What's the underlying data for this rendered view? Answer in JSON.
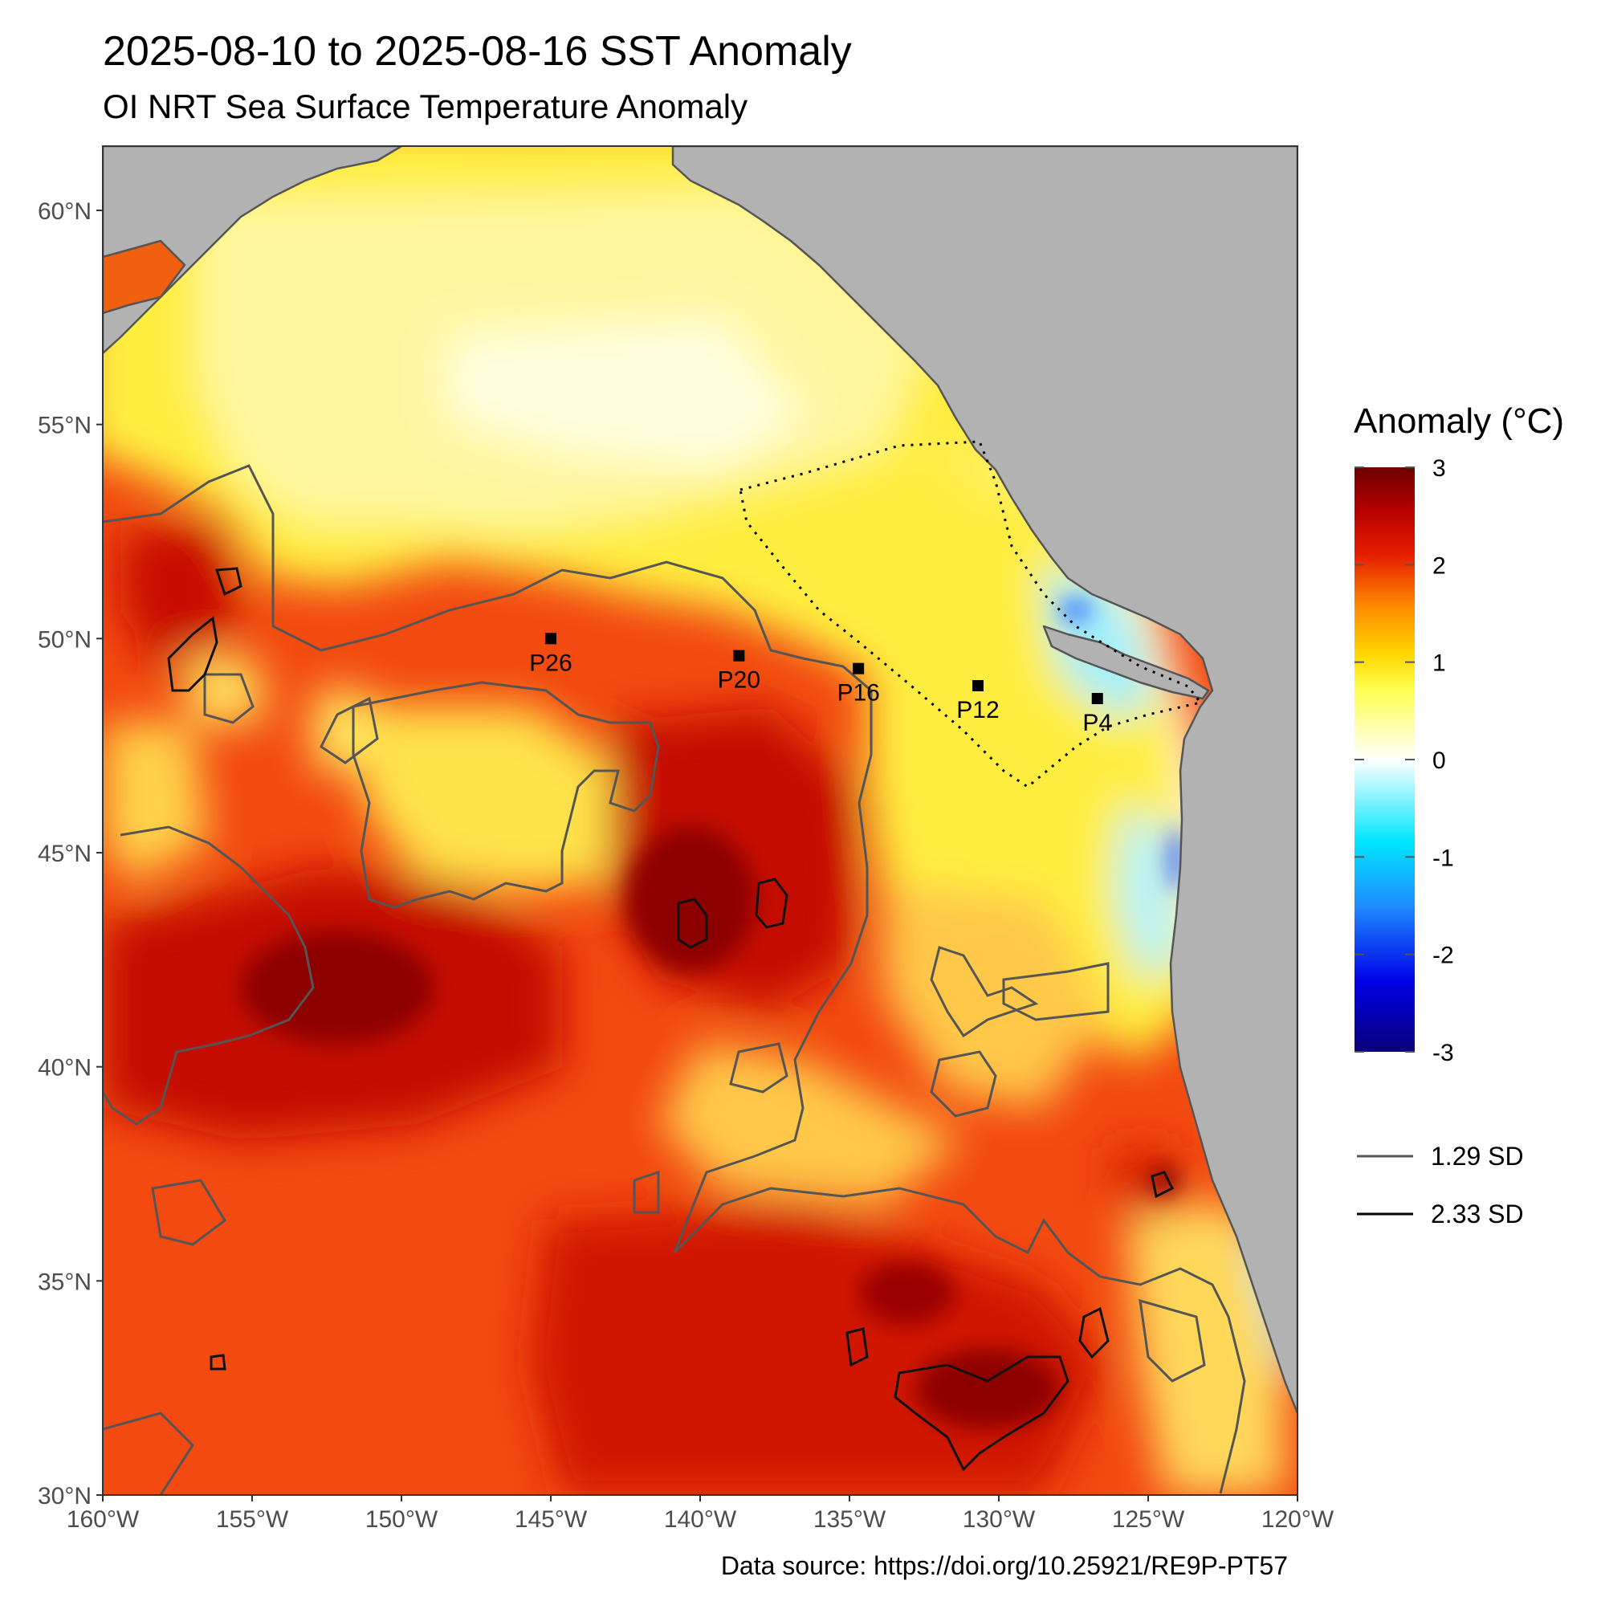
{
  "title": "2025-08-10 to 2025-08-16 SST Anomaly",
  "subtitle": "OI NRT Sea Surface Temperature Anomaly",
  "source": "Data source: https://doi.org/10.25921/RE9P-PT57",
  "axes": {
    "lat_ticks": [
      {
        "value": 60,
        "label": "60°N"
      },
      {
        "value": 55,
        "label": "55°N"
      },
      {
        "value": 50,
        "label": "50°N"
      },
      {
        "value": 45,
        "label": "45°N"
      },
      {
        "value": 40,
        "label": "40°N"
      },
      {
        "value": 35,
        "label": "35°N"
      },
      {
        "value": 30,
        "label": "30°N"
      }
    ],
    "lon_ticks": [
      {
        "value": -160,
        "label": "160°W"
      },
      {
        "value": -155,
        "label": "155°W"
      },
      {
        "value": -150,
        "label": "150°W"
      },
      {
        "value": -145,
        "label": "145°W"
      },
      {
        "value": -140,
        "label": "140°W"
      },
      {
        "value": -135,
        "label": "135°W"
      },
      {
        "value": -130,
        "label": "130°W"
      },
      {
        "value": -125,
        "label": "125°W"
      },
      {
        "value": -120,
        "label": "120°W"
      }
    ],
    "lon_range": [
      -160,
      -120
    ],
    "lat_range": [
      30,
      61.5
    ]
  },
  "stations": [
    {
      "name": "P26",
      "lon": -145.0,
      "lat": 50.0
    },
    {
      "name": "P20",
      "lon": -138.7,
      "lat": 49.6
    },
    {
      "name": "P16",
      "lon": -134.7,
      "lat": 49.3
    },
    {
      "name": "P12",
      "lon": -130.7,
      "lat": 48.9
    },
    {
      "name": "P4",
      "lon": -126.7,
      "lat": 48.6
    }
  ],
  "legend": {
    "title": "Anomaly (°C)",
    "colorbar_labels": [
      "3",
      "2",
      "1",
      "0",
      "-1",
      "-2",
      "-3"
    ],
    "colorbar_colors": [
      "#0a0078",
      "#0000e6",
      "#1e8cff",
      "#00e6ff",
      "#ffffff",
      "#ffff50",
      "#ffd700",
      "#ff8c00",
      "#e61e00",
      "#b40000",
      "#6e0000"
    ],
    "lines": [
      {
        "label": "1.29 SD",
        "color": "#555555"
      },
      {
        "label": "2.33 SD",
        "color": "#000000"
      }
    ]
  },
  "colors": {
    "land": "#b2b2b2",
    "coast": "#555555",
    "warm_core": "#a50000",
    "neutral": "#ffffff"
  },
  "map_features": {
    "sd_1_29_line": "1.29 SD contours",
    "sd_2_33_line": "2.33 SD contours",
    "dotted_region": "Line P / coastal region boundary"
  }
}
